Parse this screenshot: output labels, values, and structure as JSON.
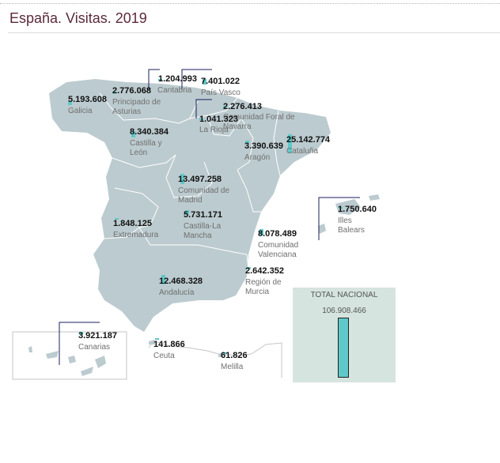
{
  "title": "España. Visitas. 2019",
  "colors": {
    "land": "#bccbcf",
    "bar": "#5fc8c8",
    "title": "#5b2a3c",
    "callout": "#1a1f5c",
    "total_box": "#d5e4df"
  },
  "total": {
    "label": "TOTAL NACIONAL",
    "value_text": "106.908.466",
    "value": 106908466,
    "fill_fraction": 1.0
  },
  "chart_data": {
    "type": "map",
    "title": "España. Visitas. 2019",
    "regions": [
      {
        "name": "Galicia",
        "value": 5193608,
        "value_text": "5.193.608"
      },
      {
        "name": "Principado de Asturias",
        "value": 2776068,
        "value_text": "2.776.068"
      },
      {
        "name": "Cantabria",
        "value": 1204993,
        "value_text": "1.204.993"
      },
      {
        "name": "País Vasco",
        "value": 7401022,
        "value_text": "7.401.022"
      },
      {
        "name": "Comunidad Foral de Navarra",
        "value": 2276413,
        "value_text": "2.276.413"
      },
      {
        "name": "La Rioja",
        "value": 1041323,
        "value_text": "1.041.323"
      },
      {
        "name": "Castilla y León",
        "value": 8340384,
        "value_text": "8.340.384"
      },
      {
        "name": "Aragón",
        "value": 3390639,
        "value_text": "3.390.639"
      },
      {
        "name": "Cataluña",
        "value": 25142774,
        "value_text": "25.142.774"
      },
      {
        "name": "Comunidad de Madrid",
        "value": 13497258,
        "value_text": "13.497.258"
      },
      {
        "name": "Castilla-La Mancha",
        "value": 5731171,
        "value_text": "5.731.171"
      },
      {
        "name": "Extremadura",
        "value": 1848125,
        "value_text": "1.848.125"
      },
      {
        "name": "Illes Balears",
        "value": 1750640,
        "value_text": "1.750.640"
      },
      {
        "name": "Comunidad Valenciana",
        "value": 8078489,
        "value_text": "8.078.489"
      },
      {
        "name": "Región de Murcia",
        "value": 2642352,
        "value_text": "2.642.352"
      },
      {
        "name": "Andalucía",
        "value": 12468328,
        "value_text": "12.468.328"
      },
      {
        "name": "Canarias",
        "value": 3921187,
        "value_text": "3.921.187"
      },
      {
        "name": "Ceuta",
        "value": 141866,
        "value_text": "141.866"
      },
      {
        "name": "Melilla",
        "value": 61826,
        "value_text": "61.826"
      }
    ]
  }
}
